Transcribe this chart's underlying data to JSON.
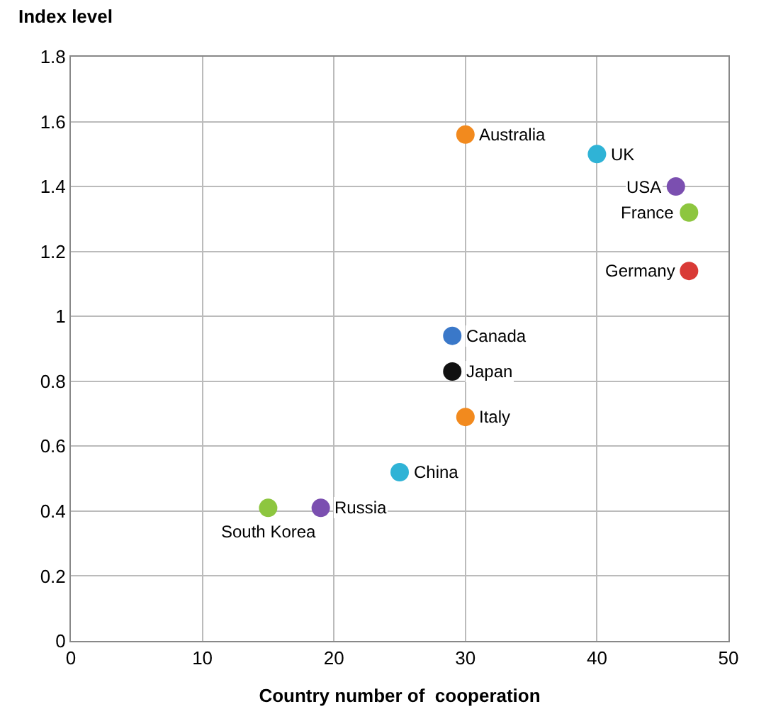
{
  "chart_data": {
    "type": "scatter",
    "ylabel": "Index level",
    "xlabel": "Country number of  cooperation",
    "x": [
      30,
      40,
      46,
      47,
      47,
      29,
      29,
      30,
      25,
      19,
      15
    ],
    "series": [
      {
        "colors": [
          "#f28a1e",
          "#2fb3d6",
          "#7b4fb0",
          "#8dc63f",
          "#d93a36",
          "#3a78c9",
          "#111111",
          "#f28a1e",
          "#2fb3d6",
          "#7b4fb0",
          "#8dc63f"
        ],
        "values": [
          1.56,
          1.5,
          1.4,
          1.32,
          1.14,
          0.94,
          0.83,
          0.69,
          0.52,
          0.41,
          0.41
        ]
      }
    ],
    "annotations": [
      {
        "text": "Australia",
        "x": 30,
        "y": 1.56
      },
      {
        "text": "UK",
        "x": 40,
        "y": 1.5
      },
      {
        "text": "USA",
        "x": 46,
        "y": 1.4
      },
      {
        "text": "France",
        "x": 47,
        "y": 1.32
      },
      {
        "text": "Germany",
        "x": 47,
        "y": 1.14
      },
      {
        "text": "Canada",
        "x": 29,
        "y": 0.94
      },
      {
        "text": "Japan",
        "x": 29,
        "y": 0.83
      },
      {
        "text": "Italy",
        "x": 30,
        "y": 0.69
      },
      {
        "text": "China",
        "x": 25,
        "y": 0.52
      },
      {
        "text": "Russia",
        "x": 19,
        "y": 0.41
      },
      {
        "text": "South Korea",
        "x": 15,
        "y": 0.41
      }
    ],
    "xlim": [
      0,
      50
    ],
    "xticks": [
      0,
      10,
      20,
      30,
      40,
      50
    ],
    "ylim": [
      0,
      1.8
    ],
    "yticks": [
      0,
      0.2,
      0.4,
      0.6,
      0.8,
      1,
      1.2,
      1.4,
      1.6,
      1.8
    ],
    "grid": true,
    "legend": false,
    "marker": "circle"
  }
}
